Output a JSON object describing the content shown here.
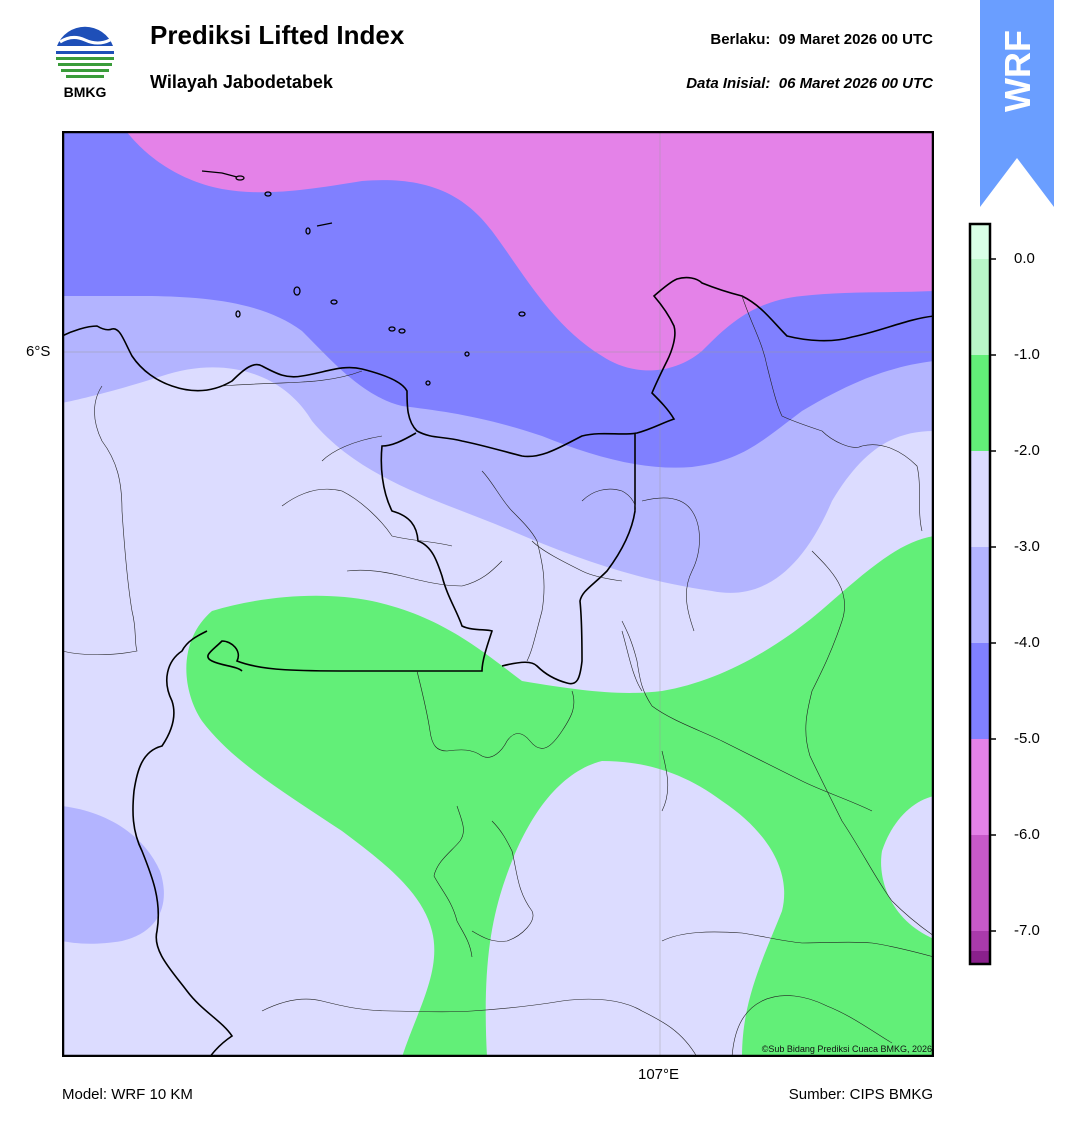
{
  "header": {
    "title": "Prediksi Lifted Index",
    "subtitle": "Wilayah Jabodetabek",
    "valid_label": "Berlaku:",
    "valid_value": "09 Maret 2026 00 UTC",
    "initial_label": "Data Inisial:",
    "initial_value": "06 Maret 2026 00 UTC"
  },
  "logo": {
    "text": "BMKG",
    "icon": "bmkg-logo"
  },
  "badge": {
    "text": "WRF",
    "color": "#6a9eff"
  },
  "map": {
    "lat_label": "6°S",
    "lon_label": "107°E",
    "copyright": "©Sub Bidang Prediksi Cuaca BMKG, 2026"
  },
  "colorbar": {
    "labels": [
      "0.0",
      "-1.0",
      "-2.0",
      "-3.0",
      "-4.0",
      "-5.0",
      "-6.0",
      "-7.0"
    ],
    "colors": [
      "#d9ffe6",
      "#b9f7c8",
      "#62ef78",
      "#dcdcff",
      "#b3b4ff",
      "#8080ff",
      "#e482e8",
      "#c759c9",
      "#a93aab",
      "#8a208c"
    ]
  },
  "footer": {
    "model": "Model: WRF 10 KM",
    "source": "Sumber: CIPS BMKG"
  }
}
